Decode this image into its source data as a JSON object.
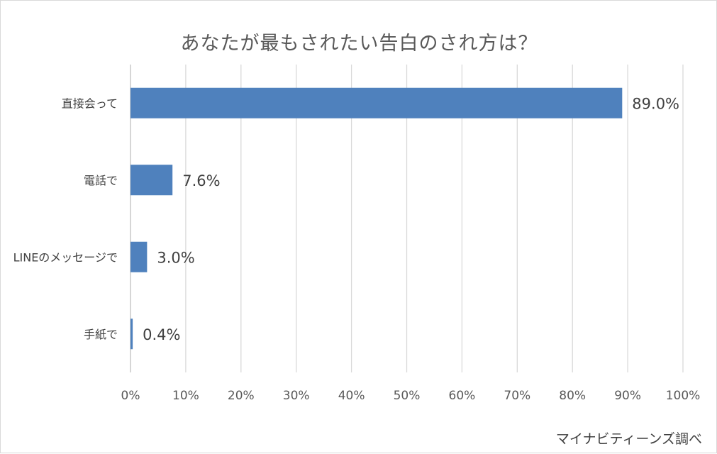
{
  "chart_data": {
    "type": "bar",
    "orientation": "horizontal",
    "title": "あなたが最もされたい告白のされ方は？",
    "categories": [
      "直接会って",
      "電話で",
      "LINEのメッセージで",
      "手紙で"
    ],
    "values": [
      89.0,
      7.6,
      3.0,
      0.4
    ],
    "data_labels": [
      "89.0%",
      "7.6%",
      "3.0%",
      "0.4%"
    ],
    "xlim": [
      0,
      100
    ],
    "xticks": [
      0,
      10,
      20,
      30,
      40,
      50,
      60,
      70,
      80,
      90,
      100
    ],
    "xtick_labels": [
      "0%",
      "10%",
      "20%",
      "30%",
      "40%",
      "50%",
      "60%",
      "70%",
      "80%",
      "90%",
      "100%"
    ],
    "xlabel": "",
    "ylabel": "",
    "grid": true,
    "legend": "none",
    "bar_color": "#4f81bd"
  },
  "source_note": "マイナビティーンズ調べ"
}
